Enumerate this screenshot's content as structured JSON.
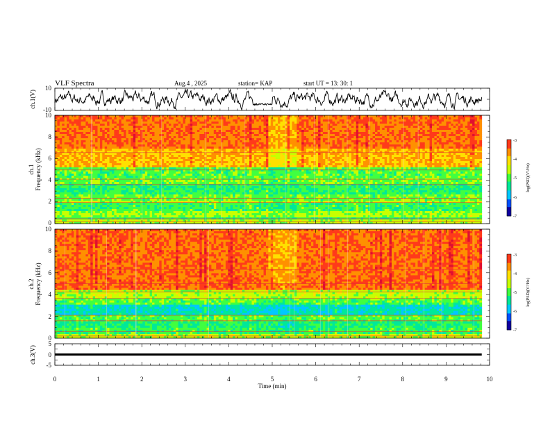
{
  "header": {
    "title": "VLF Spectra",
    "date": "Aug.4  , 2025",
    "station": "station= KAP",
    "start": "start  UT  =    13: 30: 1"
  },
  "colors": {
    "axis": "#000000",
    "spectrogram_palette": [
      "#1000a0",
      "#0050ff",
      "#00c8ff",
      "#00e89a",
      "#40ff40",
      "#c8ff00",
      "#ffe000",
      "#ff9000",
      "#ff3a1a",
      "#e01030",
      "#ffc8d8"
    ]
  },
  "chart_data": [
    {
      "type": "line",
      "id": "ch1_waveform",
      "ylabel": "ch.1(V)",
      "ylim": [
        -10,
        10
      ],
      "yticks": [
        "10",
        "-10"
      ],
      "xlim": [
        0,
        10
      ],
      "baseline": 0,
      "amplitude_typical": 5
    },
    {
      "type": "heatmap",
      "id": "ch1_spectrogram",
      "ylabel_line1": "ch.1",
      "ylabel_line2": "Frequency  (kHz)",
      "xlim": [
        0,
        10
      ],
      "ylim": [
        0,
        10
      ],
      "yticks": [
        "0",
        "2",
        "4",
        "6",
        "8",
        "10"
      ],
      "data_end_min": 9.82,
      "bands": [
        {
          "from": 0.0,
          "to": 0.3,
          "level": -4.6
        },
        {
          "from": 0.3,
          "to": 0.6,
          "level": -5.2
        },
        {
          "from": 0.6,
          "to": 1.2,
          "level": -4.7
        },
        {
          "from": 1.2,
          "to": 1.9,
          "level": -5.1
        },
        {
          "from": 1.9,
          "to": 2.2,
          "level": -4.6
        },
        {
          "from": 2.2,
          "to": 2.6,
          "level": -4.9
        },
        {
          "from": 2.6,
          "to": 3.6,
          "level": -5.2
        },
        {
          "from": 3.6,
          "to": 4.2,
          "level": -4.9
        },
        {
          "from": 4.2,
          "to": 5.2,
          "level": -5.0
        },
        {
          "from": 5.2,
          "to": 7.0,
          "level": -3.9
        },
        {
          "from": 7.0,
          "to": 10.0,
          "level": -3.5
        }
      ],
      "colorbar": {
        "label": "log(PSD)(V²/Hz)",
        "range": [
          -7,
          -3
        ],
        "ticks": [
          "-3",
          "-4",
          "-5",
          "-6",
          "-7"
        ]
      }
    },
    {
      "type": "heatmap",
      "id": "ch2_spectrogram",
      "ylabel_line1": "ch.2",
      "ylabel_line2": "Frequency  (kHz)",
      "xlim": [
        0,
        10
      ],
      "ylim": [
        0,
        10
      ],
      "yticks": [
        "0",
        "2",
        "4",
        "6",
        "8",
        "10"
      ],
      "data_end_min": 9.82,
      "bands": [
        {
          "from": 0.0,
          "to": 0.3,
          "level": -4.6
        },
        {
          "from": 0.3,
          "to": 1.0,
          "level": -5.1
        },
        {
          "from": 1.0,
          "to": 1.6,
          "level": -5.3
        },
        {
          "from": 1.6,
          "to": 2.1,
          "level": -5.0
        },
        {
          "from": 2.1,
          "to": 3.0,
          "level": -5.6
        },
        {
          "from": 3.0,
          "to": 3.7,
          "level": -5.0
        },
        {
          "from": 3.7,
          "to": 4.5,
          "level": -4.6
        },
        {
          "from": 4.5,
          "to": 10.0,
          "level": -3.5
        }
      ],
      "colorbar": {
        "label": "log(PSD)(V²/Hz)",
        "range": [
          -7,
          -3
        ],
        "ticks": [
          "-3",
          "-4",
          "-5",
          "-6",
          "-7"
        ]
      }
    },
    {
      "type": "line",
      "id": "ch3_waveform",
      "ylabel": "ch.3(V)",
      "ylim": [
        -5,
        5
      ],
      "yticks": [
        "5",
        "0",
        "-5"
      ],
      "xlim": [
        0,
        10
      ],
      "band_center": 0,
      "band_halfwidth": 0.5,
      "xlabel": "Time  (min)",
      "xticks": [
        "0",
        "1",
        "2",
        "3",
        "4",
        "5",
        "6",
        "7",
        "8",
        "9",
        "10"
      ]
    }
  ]
}
